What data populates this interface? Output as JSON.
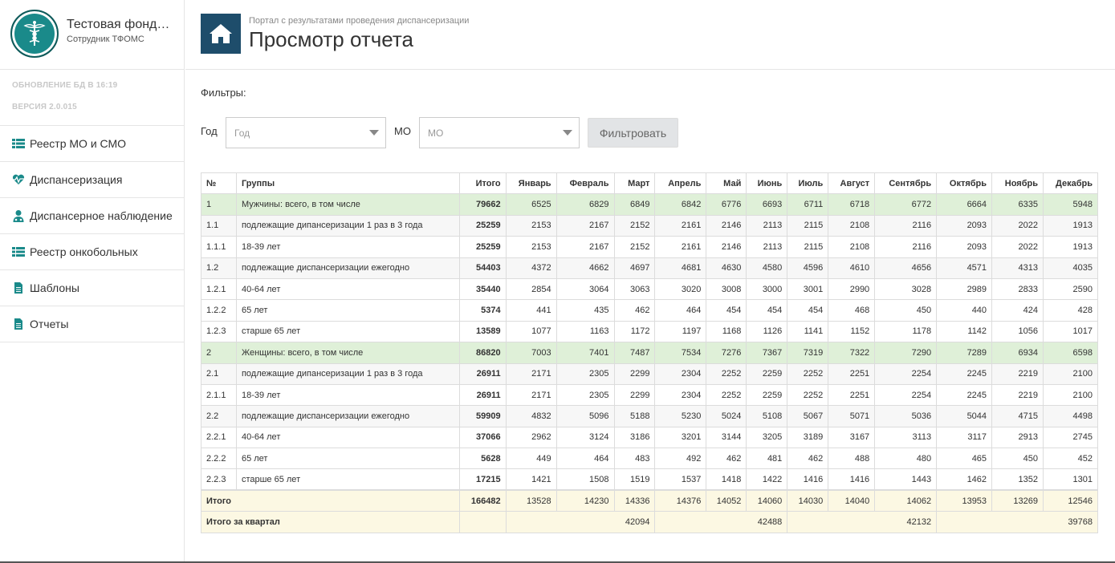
{
  "brand": {
    "title": "Тестовая фонд…",
    "subtitle": "Сотрудник ТФОМС"
  },
  "sysinfo": {
    "update": "ОБНОВЛЕНИЕ БД В 16:19",
    "version": "ВЕРСИЯ 2.0.015"
  },
  "nav": [
    {
      "label": "Реестр МО и СМО",
      "icon": "list-icon"
    },
    {
      "label": "Диспансеризация",
      "icon": "heartbeat-icon"
    },
    {
      "label": "Диспансерное наблюдение",
      "icon": "user-md-icon"
    },
    {
      "label": "Реестр онкобольных",
      "icon": "list-icon"
    },
    {
      "label": "Шаблоны",
      "icon": "file-icon"
    },
    {
      "label": "Отчеты",
      "icon": "file-icon"
    }
  ],
  "header": {
    "portal": "Портал с результатами проведения диспансеризации",
    "title": "Просмотр отчета"
  },
  "filters": {
    "label": "Фильтры:",
    "year_label": "Год",
    "year_placeholder": "Год",
    "mo_label": "МО",
    "mo_placeholder": "МО",
    "button": "Фильтровать"
  },
  "table": {
    "headers": [
      "№",
      "Группы",
      "Итого",
      "Январь",
      "Февраль",
      "Март",
      "Апрель",
      "Май",
      "Июнь",
      "Июль",
      "Август",
      "Сентябрь",
      "Октябрь",
      "Ноябрь",
      "Декабрь"
    ],
    "rows": [
      {
        "num": "1",
        "group": "Мужчины: всего, в том числе",
        "total": "79662",
        "months": [
          "6525",
          "6829",
          "6849",
          "6842",
          "6776",
          "6693",
          "6711",
          "6718",
          "6772",
          "6664",
          "6335",
          "5948"
        ]
      },
      {
        "num": "1.1",
        "group": "подлежащие дипансеризации 1 раз в 3 года",
        "total": "25259",
        "months": [
          "2153",
          "2167",
          "2152",
          "2161",
          "2146",
          "2113",
          "2115",
          "2108",
          "2116",
          "2093",
          "2022",
          "1913"
        ]
      },
      {
        "num": "1.1.1",
        "group": "18-39 лет",
        "total": "25259",
        "months": [
          "2153",
          "2167",
          "2152",
          "2161",
          "2146",
          "2113",
          "2115",
          "2108",
          "2116",
          "2093",
          "2022",
          "1913"
        ]
      },
      {
        "num": "1.2",
        "group": "подлежащие диспансеризации ежегодно",
        "total": "54403",
        "months": [
          "4372",
          "4662",
          "4697",
          "4681",
          "4630",
          "4580",
          "4596",
          "4610",
          "4656",
          "4571",
          "4313",
          "4035"
        ]
      },
      {
        "num": "1.2.1",
        "group": "40-64 лет",
        "total": "35440",
        "months": [
          "2854",
          "3064",
          "3063",
          "3020",
          "3008",
          "3000",
          "3001",
          "2990",
          "3028",
          "2989",
          "2833",
          "2590"
        ]
      },
      {
        "num": "1.2.2",
        "group": "65 лет",
        "total": "5374",
        "months": [
          "441",
          "435",
          "462",
          "464",
          "454",
          "454",
          "454",
          "468",
          "450",
          "440",
          "424",
          "428"
        ]
      },
      {
        "num": "1.2.3",
        "group": "старше 65 лет",
        "total": "13589",
        "months": [
          "1077",
          "1163",
          "1172",
          "1197",
          "1168",
          "1126",
          "1141",
          "1152",
          "1178",
          "1142",
          "1056",
          "1017"
        ]
      },
      {
        "num": "2",
        "group": "Женщины: всего, в том числе",
        "total": "86820",
        "months": [
          "7003",
          "7401",
          "7487",
          "7534",
          "7276",
          "7367",
          "7319",
          "7322",
          "7290",
          "7289",
          "6934",
          "6598"
        ]
      },
      {
        "num": "2.1",
        "group": "подлежащие дипансеризации 1 раз в 3 года",
        "total": "26911",
        "months": [
          "2171",
          "2305",
          "2299",
          "2304",
          "2252",
          "2259",
          "2252",
          "2251",
          "2254",
          "2245",
          "2219",
          "2100"
        ]
      },
      {
        "num": "2.1.1",
        "group": "18-39 лет",
        "total": "26911",
        "months": [
          "2171",
          "2305",
          "2299",
          "2304",
          "2252",
          "2259",
          "2252",
          "2251",
          "2254",
          "2245",
          "2219",
          "2100"
        ]
      },
      {
        "num": "2.2",
        "group": "подлежащие диспансеризации ежегодно",
        "total": "59909",
        "months": [
          "4832",
          "5096",
          "5188",
          "5230",
          "5024",
          "5108",
          "5067",
          "5071",
          "5036",
          "5044",
          "4715",
          "4498"
        ]
      },
      {
        "num": "2.2.1",
        "group": "40-64 лет",
        "total": "37066",
        "months": [
          "2962",
          "3124",
          "3186",
          "3201",
          "3144",
          "3205",
          "3189",
          "3167",
          "3113",
          "3117",
          "2913",
          "2745"
        ]
      },
      {
        "num": "2.2.2",
        "group": "65 лет",
        "total": "5628",
        "months": [
          "449",
          "464",
          "483",
          "492",
          "462",
          "481",
          "462",
          "488",
          "480",
          "465",
          "450",
          "452"
        ]
      },
      {
        "num": "2.2.3",
        "group": "старше 65 лет",
        "total": "17215",
        "months": [
          "1421",
          "1508",
          "1519",
          "1537",
          "1418",
          "1422",
          "1416",
          "1416",
          "1443",
          "1462",
          "1352",
          "1301"
        ]
      }
    ],
    "total_row": {
      "label": "Итого",
      "total": "166482",
      "months": [
        "13528",
        "14230",
        "14336",
        "14376",
        "14052",
        "14060",
        "14030",
        "14040",
        "14062",
        "13953",
        "13269",
        "12546"
      ]
    },
    "quarter_row": {
      "label": "Итого за квартал",
      "quarters": [
        "42094",
        "42488",
        "42132",
        "39768"
      ]
    }
  },
  "colors": {
    "accent": "#1e4d6b",
    "logo": "#1a8a8a",
    "group_row": "#dff0d8",
    "total_row": "#fcf8e3",
    "nav_icon": "#1a8a8a"
  }
}
